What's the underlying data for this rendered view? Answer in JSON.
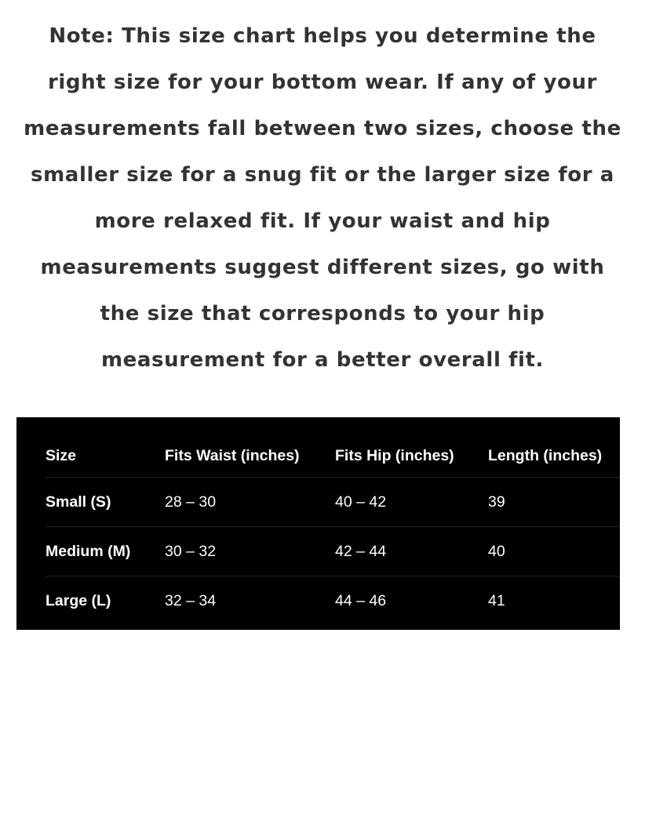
{
  "note": {
    "lines": [
      "Note: This size chart helps you determine the",
      "right size for your bottom wear. If any of your",
      "measurements fall between two sizes, choose the",
      "smaller size for a snug fit or the larger size for a",
      "more relaxed fit. If your waist and hip",
      "measurements suggest different sizes, go with",
      "the size that corresponds to your hip",
      "measurement for a better overall fit."
    ]
  },
  "table": {
    "headers": [
      "Size",
      "Fits Waist (inches)",
      "Fits Hip (inches)",
      "Length (inches)"
    ],
    "rows": [
      [
        "Small (S)",
        "28 – 30",
        "40 – 42",
        "39"
      ],
      [
        "Medium (M)",
        "30 – 32",
        "42 – 44",
        "40"
      ],
      [
        "Large (L)",
        "32 – 34",
        "44 – 46",
        "41"
      ]
    ]
  }
}
